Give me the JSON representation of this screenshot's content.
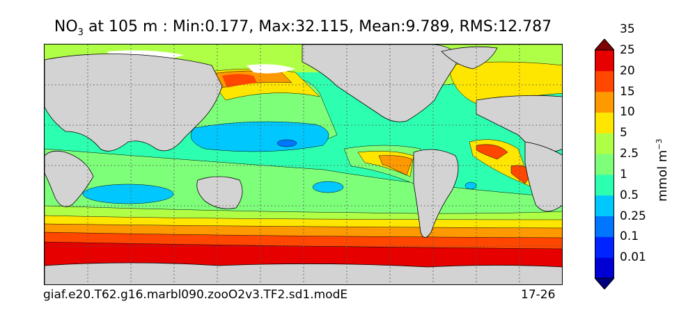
{
  "title": {
    "species_main": "NO",
    "species_sub": "3",
    "rest": " at 105 m : Min:0.177, Max:32.115, Mean:9.789, RMS:12.787"
  },
  "map": {
    "projection": "cylindrical (global)",
    "land_color": "#d3d3d3",
    "gridlines": true
  },
  "colorbar": {
    "levels": [
      "0.01",
      "0.1",
      "0.25",
      "0.5",
      "1",
      "2.5",
      "5",
      "10",
      "15",
      "20",
      "25",
      "35"
    ],
    "colors": [
      "#00007f",
      "#0000d5",
      "#0023ff",
      "#0076ff",
      "#00c8ff",
      "#2dffb0",
      "#7dff7a",
      "#b0ff47",
      "#ffe600",
      "#ff9900",
      "#ff4700",
      "#e60000",
      "#7f0000"
    ],
    "unit_main": "mmol m",
    "unit_sup": "−3"
  },
  "footer": {
    "case_name": "giaf.e20.T62.g16.marbl090.zooO2v3.TF2.sd1.modE",
    "years": "17-26"
  }
}
